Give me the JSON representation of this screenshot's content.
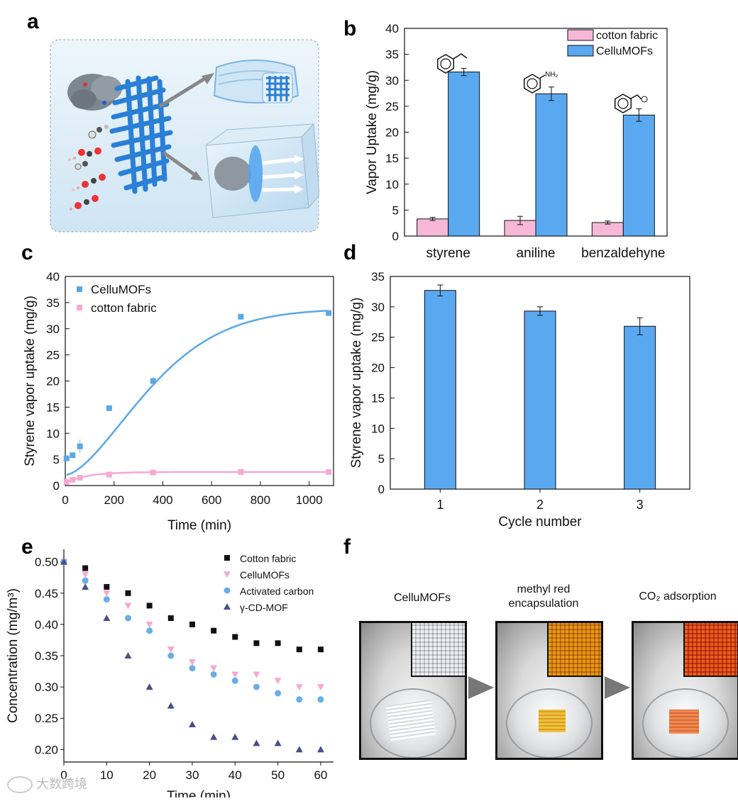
{
  "panels": {
    "a": "a",
    "b": "b",
    "c": "c",
    "d": "d",
    "e": "e",
    "f": "f"
  },
  "panel_b": {
    "chart_data": {
      "type": "bar",
      "categories": [
        "styrene",
        "aniline",
        "benzaldehyne"
      ],
      "series": [
        {
          "name": "cotton fabric",
          "values": [
            3.3,
            3.0,
            2.6
          ],
          "errors": [
            0.3,
            0.8,
            0.3
          ],
          "color": "#f7b8d8"
        },
        {
          "name": "CelluMOFs",
          "values": [
            31.6,
            27.4,
            23.3
          ],
          "errors": [
            0.7,
            1.3,
            1.2
          ],
          "color": "#5aa8f0"
        }
      ],
      "ylabel": "Vapor Uptake (mg/g)",
      "ylim": [
        0,
        40
      ],
      "yticks": [
        "0",
        "5",
        "10",
        "15",
        "20",
        "25",
        "30",
        "35",
        "40"
      ],
      "legend": "top-right",
      "annotations": [
        "NH₂"
      ]
    }
  },
  "panel_c": {
    "chart_data": {
      "type": "scatter",
      "series": [
        {
          "name": "CelluMOFs",
          "x": [
            5,
            30,
            60,
            180,
            360,
            720,
            1080
          ],
          "y": [
            5.2,
            5.8,
            7.5,
            14.8,
            20,
            32.3,
            33
          ],
          "errors": [
            0.3,
            0.5,
            1.3,
            0.6,
            0.8,
            0.5,
            0.3
          ],
          "color": "#5aa8e6"
        },
        {
          "name": "cotton fabric",
          "x": [
            5,
            30,
            60,
            180,
            360,
            720,
            1080
          ],
          "y": [
            0.7,
            1.1,
            1.5,
            2.1,
            2.5,
            2.6,
            2.6
          ],
          "errors": [
            0.1,
            0.1,
            0.1,
            0.2,
            0.2,
            0.2,
            0.2
          ],
          "color": "#f7a8d0"
        }
      ],
      "fit_curves": true,
      "xlabel": "Time (min)",
      "ylabel": "Styrene vapor uptake (mg/g)",
      "xlim": [
        0,
        1100
      ],
      "ylim": [
        0,
        40
      ],
      "xticks": [
        "0",
        "200",
        "400",
        "600",
        "800",
        "1000"
      ],
      "yticks": [
        "0",
        "5",
        "10",
        "15",
        "20",
        "25",
        "30",
        "35",
        "40"
      ],
      "legend": "top-left"
    }
  },
  "panel_d": {
    "chart_data": {
      "type": "bar",
      "categories": [
        "1",
        "2",
        "3"
      ],
      "values": [
        32.7,
        29.3,
        26.8
      ],
      "errors": [
        0.9,
        0.7,
        1.4
      ],
      "color": "#5aa8f0",
      "xlabel": "Cycle number",
      "ylabel": "Styrene vapor uptake (mg/g)",
      "ylim": [
        0,
        35
      ],
      "yticks": [
        "0",
        "5",
        "10",
        "15",
        "20",
        "25",
        "30",
        "35"
      ]
    }
  },
  "panel_e": {
    "chart_data": {
      "type": "scatter",
      "x": [
        0,
        5,
        10,
        15,
        20,
        25,
        30,
        35,
        40,
        45,
        50,
        55,
        60
      ],
      "series": [
        {
          "name": "Cotton fabric",
          "marker": "square",
          "color": "#111111",
          "y": [
            0.5,
            0.49,
            0.46,
            0.45,
            0.43,
            0.41,
            0.4,
            0.39,
            0.38,
            0.37,
            0.37,
            0.36,
            0.36
          ]
        },
        {
          "name": "CelluMOFs",
          "marker": "triangle-down",
          "color": "#f7a8d0",
          "y": [
            0.5,
            0.48,
            0.45,
            0.43,
            0.4,
            0.36,
            0.34,
            0.33,
            0.32,
            0.32,
            0.31,
            0.3,
            0.3
          ]
        },
        {
          "name": "Activated carbon",
          "marker": "circle",
          "color": "#6aaee6",
          "y": [
            0.5,
            0.47,
            0.44,
            0.41,
            0.39,
            0.35,
            0.33,
            0.32,
            0.31,
            0.3,
            0.29,
            0.28,
            0.28
          ]
        },
        {
          "name": "γ-CD-MOF",
          "marker": "triangle-up",
          "color": "#4a4f8a",
          "y": [
            0.5,
            0.46,
            0.41,
            0.35,
            0.3,
            0.27,
            0.24,
            0.22,
            0.22,
            0.21,
            0.21,
            0.2,
            0.2
          ]
        }
      ],
      "xlabel": "Time (min)",
      "ylabel": "Concentration (mg/m³)",
      "xlim": [
        0,
        63
      ],
      "ylim": [
        0.18,
        0.52
      ],
      "xticks": [
        "0",
        "10",
        "20",
        "30",
        "40",
        "50",
        "60"
      ],
      "yticks": [
        "0.20",
        "0.25",
        "0.30",
        "0.35",
        "0.40",
        "0.45",
        "0.50"
      ],
      "legend": "top-right"
    }
  },
  "panel_f": {
    "titles": [
      "CelluMOFs",
      "methyl red encapsulation",
      "CO₂ adsorption"
    ]
  },
  "watermark": "大数跨境"
}
